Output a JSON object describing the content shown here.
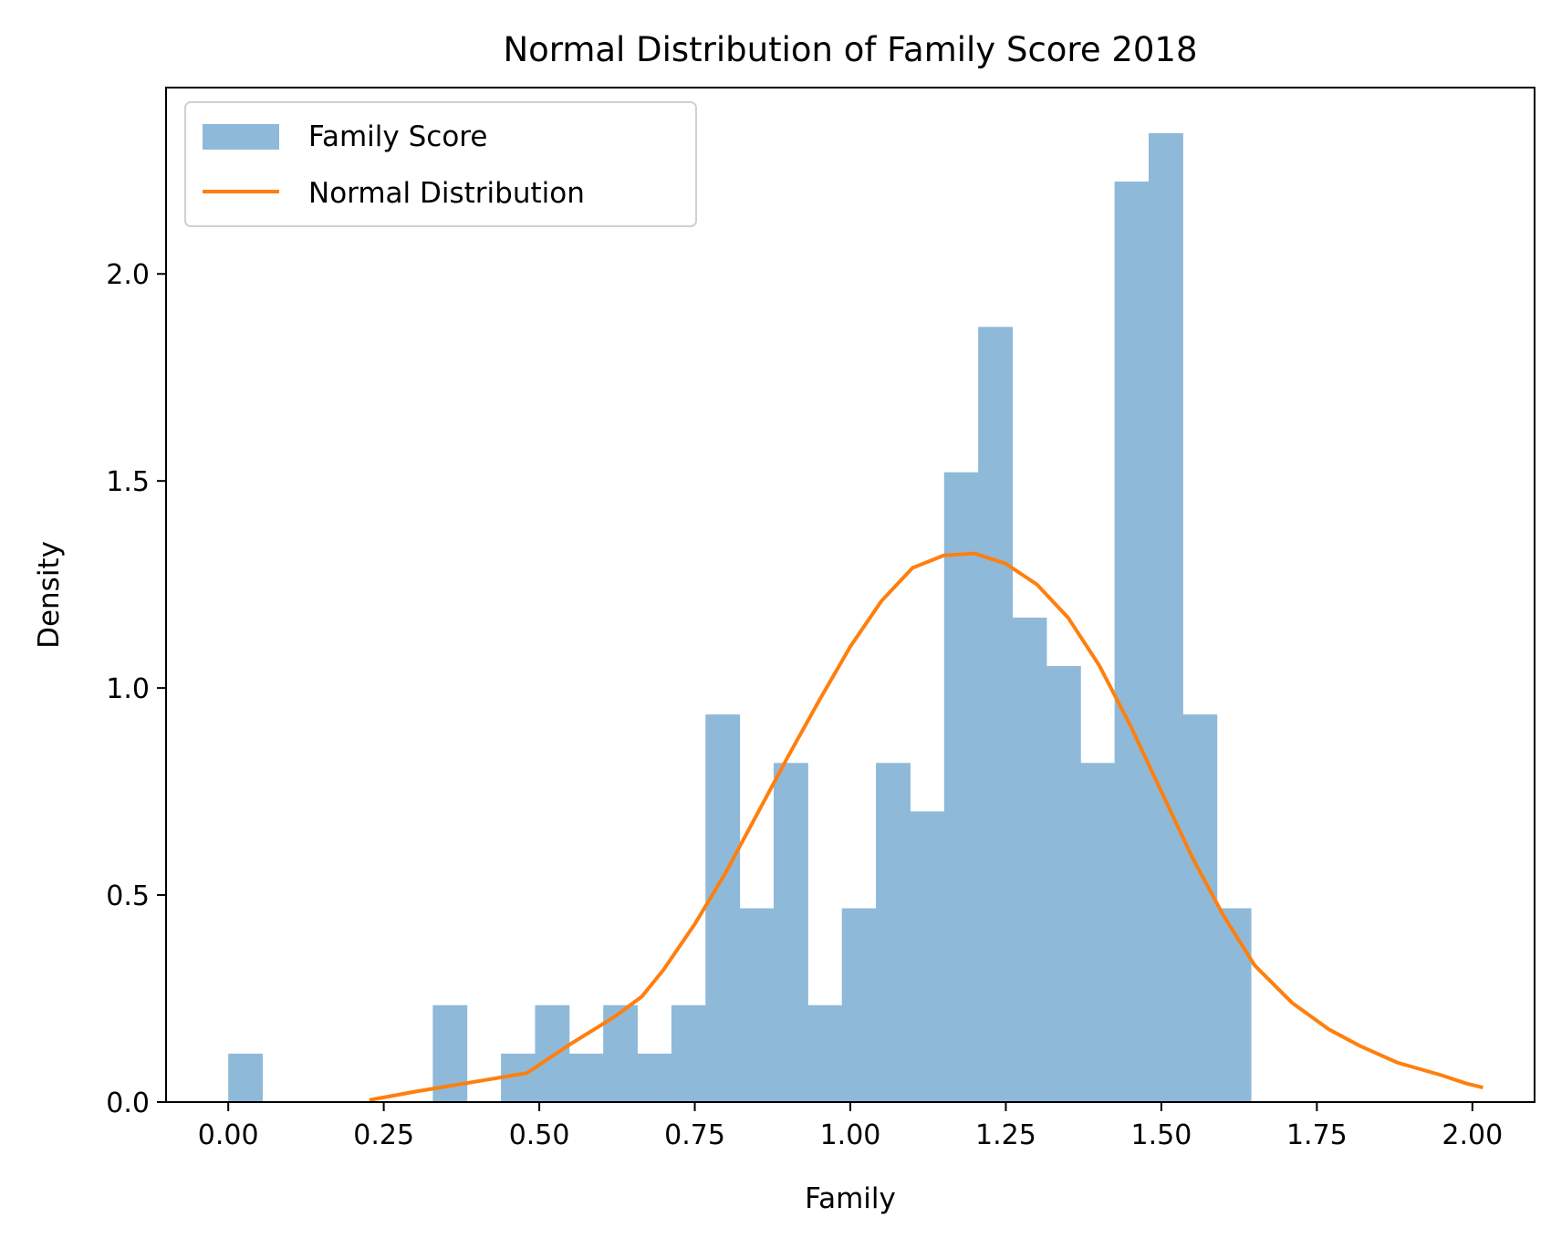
{
  "chart_data": {
    "type": "bar",
    "title": "Normal Distribution of Family Score 2018",
    "xlabel": "Family",
    "ylabel": "Density",
    "xlim": [
      -0.1,
      2.1
    ],
    "ylim": [
      0,
      2.45
    ],
    "x_ticks": [
      0.0,
      0.25,
      0.5,
      0.75,
      1.0,
      1.25,
      1.5,
      1.75,
      2.0
    ],
    "x_tick_labels": [
      "0.00",
      "0.25",
      "0.50",
      "0.75",
      "1.00",
      "1.25",
      "1.50",
      "1.75",
      "2.00"
    ],
    "y_ticks": [
      0.0,
      0.5,
      1.0,
      1.5,
      2.0
    ],
    "y_tick_labels": [
      "0.0",
      "0.5",
      "1.0",
      "1.5",
      "2.0"
    ],
    "grid": false,
    "legend": {
      "placement": "top-left",
      "entries": [
        "Family Score",
        "Normal Distribution"
      ]
    },
    "colors": {
      "histogram": "#8fb9d9",
      "normal_line": "#ff7f0e"
    },
    "series": [
      {
        "name": "Family Score",
        "kind": "histogram",
        "bin_start": 0.0,
        "bin_width": 0.0548,
        "values": [
          0.117,
          0,
          0,
          0,
          0,
          0,
          0.234,
          0,
          0.117,
          0.234,
          0.117,
          0.234,
          0.117,
          0.234,
          0.936,
          0.468,
          0.819,
          0.234,
          0.468,
          0.819,
          0.702,
          1.521,
          1.872,
          1.17,
          1.053,
          0.819,
          2.223,
          2.34,
          0.936,
          0.468
        ]
      },
      {
        "name": "Normal Distribution",
        "kind": "line",
        "x": [
          0.227,
          0.3,
          0.4,
          0.48,
          0.55,
          0.62,
          0.665,
          0.7,
          0.75,
          0.8,
          0.85,
          0.9,
          0.95,
          1.0,
          1.05,
          1.1,
          1.15,
          1.2,
          1.25,
          1.3,
          1.35,
          1.4,
          1.45,
          1.5,
          1.55,
          1.6,
          1.65,
          1.71,
          1.77,
          1.82,
          1.88,
          1.95,
          1.99,
          2.017
        ],
        "y": [
          0.005,
          0.025,
          0.05,
          0.07,
          0.14,
          0.205,
          0.255,
          0.32,
          0.43,
          0.555,
          0.695,
          0.835,
          0.97,
          1.1,
          1.21,
          1.29,
          1.32,
          1.325,
          1.3,
          1.25,
          1.17,
          1.055,
          0.91,
          0.75,
          0.59,
          0.45,
          0.33,
          0.24,
          0.175,
          0.135,
          0.095,
          0.065,
          0.045,
          0.035
        ]
      }
    ]
  }
}
